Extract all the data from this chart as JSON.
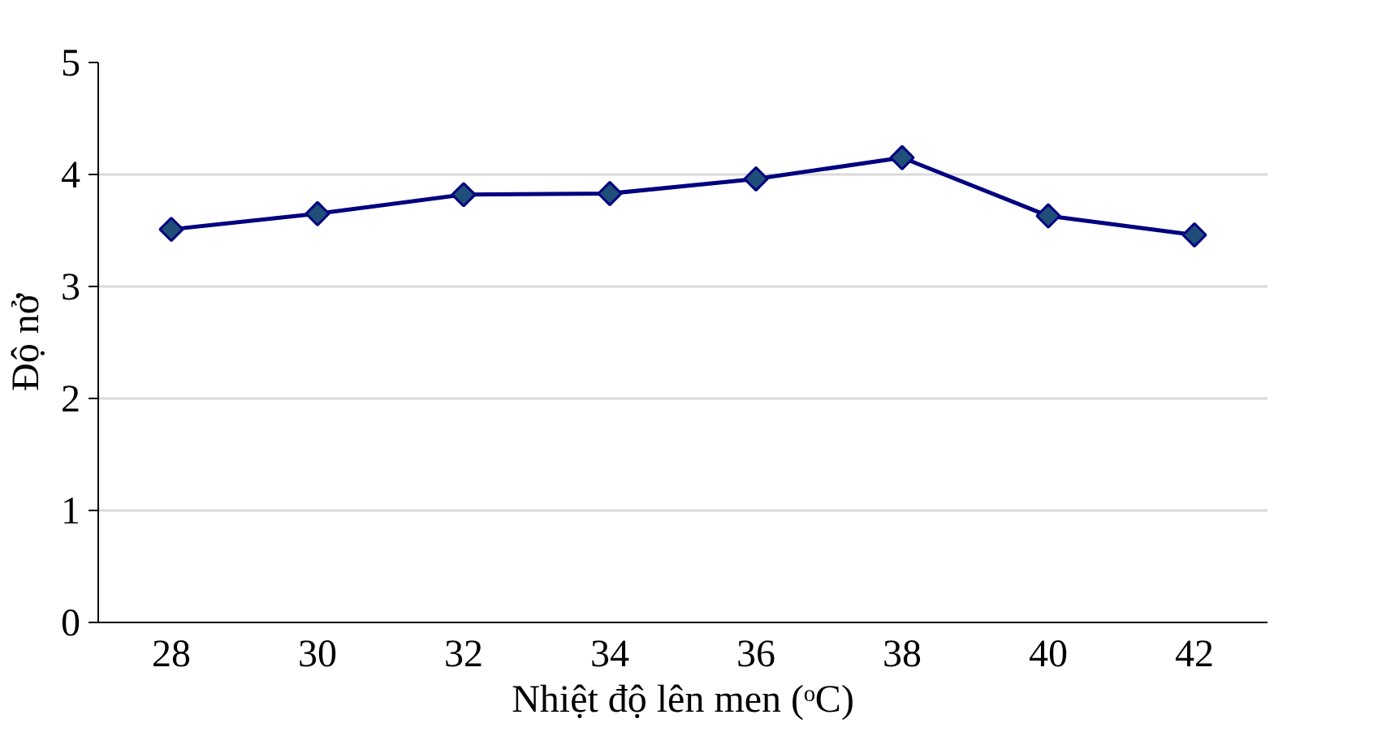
{
  "chart_data": {
    "type": "line",
    "xlabel": "Nhiệt độ lên men (ᵒC)",
    "ylabel": "Độ nở",
    "categories": [
      "28",
      "30",
      "32",
      "34",
      "36",
      "38",
      "40",
      "42"
    ],
    "series": [
      {
        "color": "#000080",
        "values": [
          3.51,
          3.65,
          3.82,
          3.83,
          3.96,
          4.15,
          3.63,
          3.46
        ]
      }
    ],
    "ylim": [
      0,
      5
    ],
    "yticks": [
      0,
      1,
      2,
      3,
      4,
      5
    ],
    "grid": "y",
    "marker": "diamond"
  }
}
